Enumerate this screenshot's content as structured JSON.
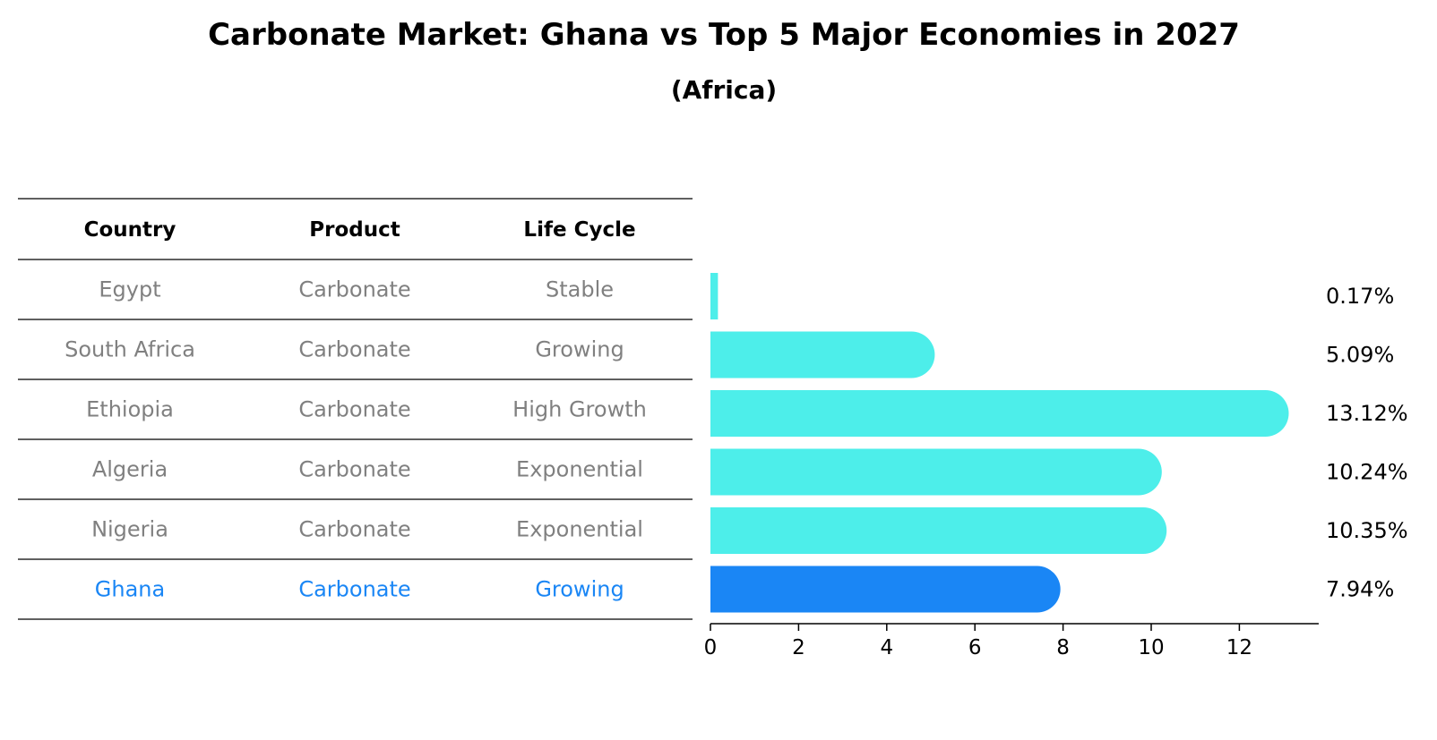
{
  "title": "Carbonate Market: Ghana vs Top 5 Major Economies in 2027",
  "subtitle": "(Africa)",
  "table": {
    "headers": [
      "Country",
      "Product",
      "Life Cycle"
    ],
    "rows": [
      {
        "country": "Egypt",
        "product": "Carbonate",
        "life_cycle": "Stable"
      },
      {
        "country": "South Africa",
        "product": "Carbonate",
        "life_cycle": "Growing"
      },
      {
        "country": "Ethiopia",
        "product": "Carbonate",
        "life_cycle": "High Growth"
      },
      {
        "country": "Algeria",
        "product": "Carbonate",
        "life_cycle": "Exponential"
      },
      {
        "country": "Nigeria",
        "product": "Carbonate",
        "life_cycle": "Exponential"
      },
      {
        "country": "Ghana",
        "product": "Carbonate",
        "life_cycle": "Growing"
      }
    ],
    "highlight_row": 5
  },
  "colors": {
    "bar": "#4deeea",
    "highlight_bar": "#1a86f5",
    "highlight_text": "#1a86f5",
    "row_text": "#808080",
    "header_text": "#000000",
    "rule": "#000000"
  },
  "chart_data": {
    "type": "bar",
    "orientation": "horizontal",
    "categories": [
      "Egypt",
      "South Africa",
      "Ethiopia",
      "Algeria",
      "Nigeria",
      "Ghana"
    ],
    "values": [
      0.17,
      5.09,
      13.12,
      10.24,
      10.35,
      7.94
    ],
    "value_labels": [
      "0.17%",
      "5.09%",
      "13.12%",
      "10.24%",
      "10.35%",
      "7.94%"
    ],
    "highlight_index": 5,
    "xlim": [
      0,
      13.8
    ],
    "xticks": [
      0,
      2,
      4,
      6,
      8,
      10,
      12
    ],
    "xtick_labels": [
      "0",
      "2",
      "4",
      "6",
      "8",
      "10",
      "12"
    ],
    "grid": false
  }
}
